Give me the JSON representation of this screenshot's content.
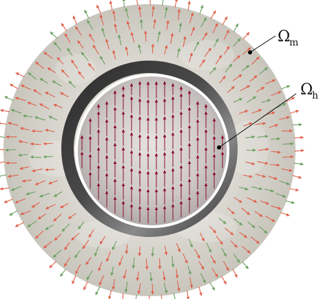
{
  "labels": {
    "outer_region": {
      "symbol": "Ω",
      "subscript": "m"
    },
    "inner_region": {
      "symbol": "Ω",
      "subscript": "h"
    }
  },
  "colors": {
    "outer_fill": "#d4d2ca",
    "ring_dark": "#3a3a3a",
    "ring_white": "#ffffff",
    "inner_fill": "#c9c4c4",
    "arrow_red": "#e0604a",
    "arrow_green": "#6aa060",
    "inner_arrow": "#8a0d2a",
    "leader": "#000000"
  }
}
